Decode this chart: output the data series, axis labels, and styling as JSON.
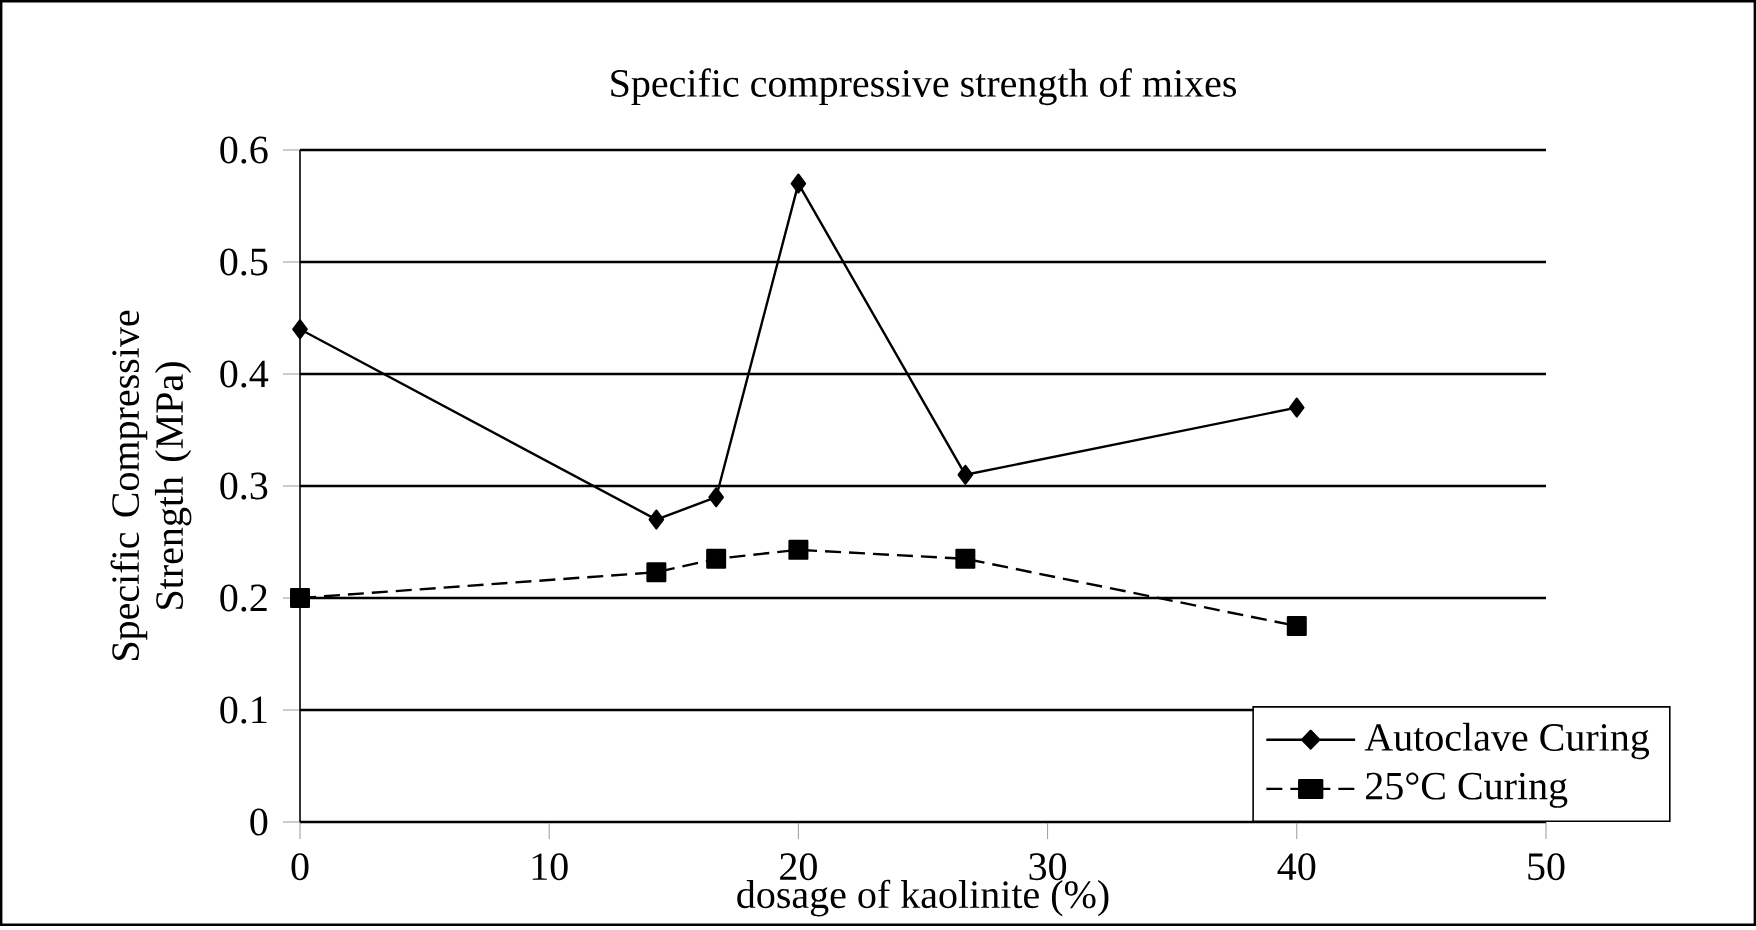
{
  "chart_data": {
    "type": "line",
    "title": "Specific compressive strength of mixes",
    "xlabel": "dosage of kaolinite (%)",
    "ylabel": "Specific Compressive Strength (MPa)",
    "xlim": [
      0,
      50
    ],
    "xticks": [
      0,
      10,
      20,
      30,
      40,
      50
    ],
    "ylim": [
      0,
      0.6
    ],
    "yticks": [
      0,
      0.1,
      0.2,
      0.3,
      0.4,
      0.5,
      0.6
    ],
    "grid": "y",
    "legend": "bottom right",
    "series": [
      {
        "name": "Autoclave Curing",
        "color": "#000000",
        "marker": "diamond",
        "line_style": "solid",
        "x": [
          0,
          14.3,
          16.7,
          20,
          26.7,
          40
        ],
        "values": [
          0.44,
          0.27,
          0.29,
          0.57,
          0.31,
          0.37
        ]
      },
      {
        "name": "25°C Curing",
        "color": "#000000",
        "marker": "square",
        "line_style": "dashed",
        "x": [
          0,
          14.3,
          16.7,
          20,
          26.7,
          40
        ],
        "values": [
          0.2,
          0.223,
          0.235,
          0.243,
          0.235,
          0.175
        ]
      }
    ]
  }
}
